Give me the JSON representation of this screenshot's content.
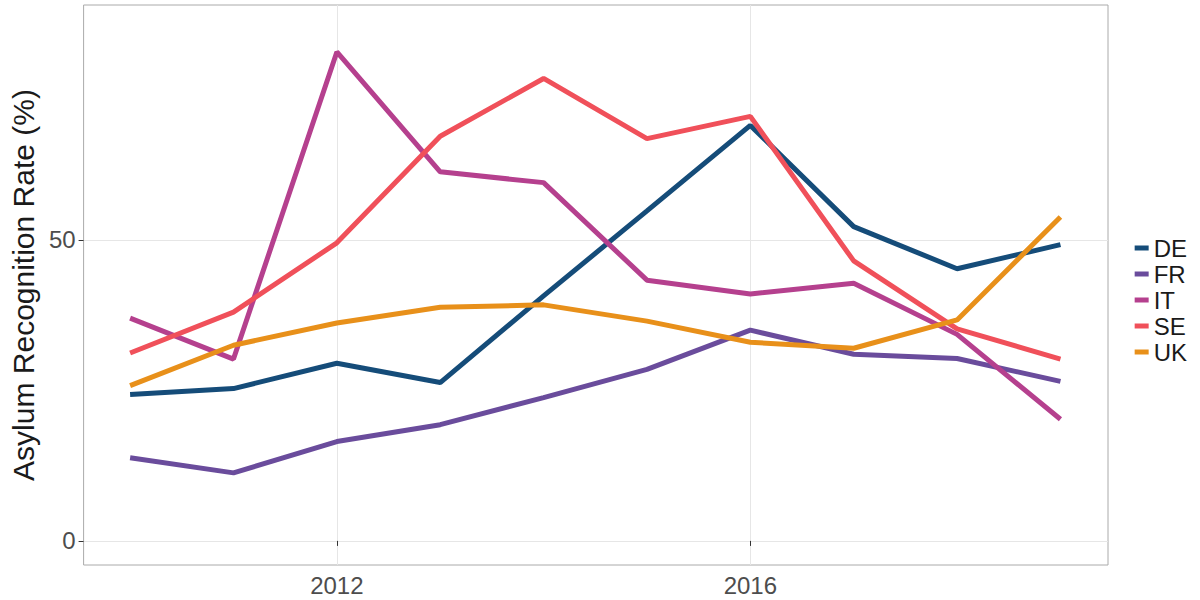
{
  "chart_data": {
    "type": "line",
    "y_label": "Asylum Recognition Rate (%)",
    "x": [
      2010,
      2011,
      2012,
      2013,
      2014,
      2015,
      2016,
      2017,
      2018,
      2019
    ],
    "series": [
      {
        "name": "DE",
        "color": "#154c79",
        "values": [
          24.3,
          25.3,
          29.5,
          26.3,
          40.7,
          54.8,
          69.0,
          52.2,
          45.2,
          49.2
        ]
      },
      {
        "name": "FR",
        "color": "#6a4c9c",
        "values": [
          13.8,
          11.3,
          16.5,
          19.3,
          23.8,
          28.5,
          35.0,
          31.0,
          30.3,
          26.5
        ]
      },
      {
        "name": "IT",
        "color": "#b5408e",
        "values": [
          37.0,
          30.2,
          81.2,
          61.3,
          59.5,
          43.3,
          41.0,
          42.8,
          34.3,
          20.2
        ]
      },
      {
        "name": "SE",
        "color": "#f0505a",
        "values": [
          31.2,
          38.0,
          49.5,
          67.2,
          76.8,
          66.8,
          70.5,
          46.5,
          35.2,
          30.2
        ]
      },
      {
        "name": "UK",
        "color": "#e8901a",
        "values": [
          25.8,
          32.5,
          36.2,
          38.8,
          39.2,
          36.5,
          33.0,
          32.0,
          36.7,
          53.8
        ]
      }
    ],
    "xlim": [
      2009.55,
      2019.46
    ],
    "xticks": [
      2012,
      2016
    ],
    "ylim": [
      -4,
      89
    ],
    "yticks": [
      0,
      50
    ],
    "grid": true,
    "legend": "right"
  }
}
